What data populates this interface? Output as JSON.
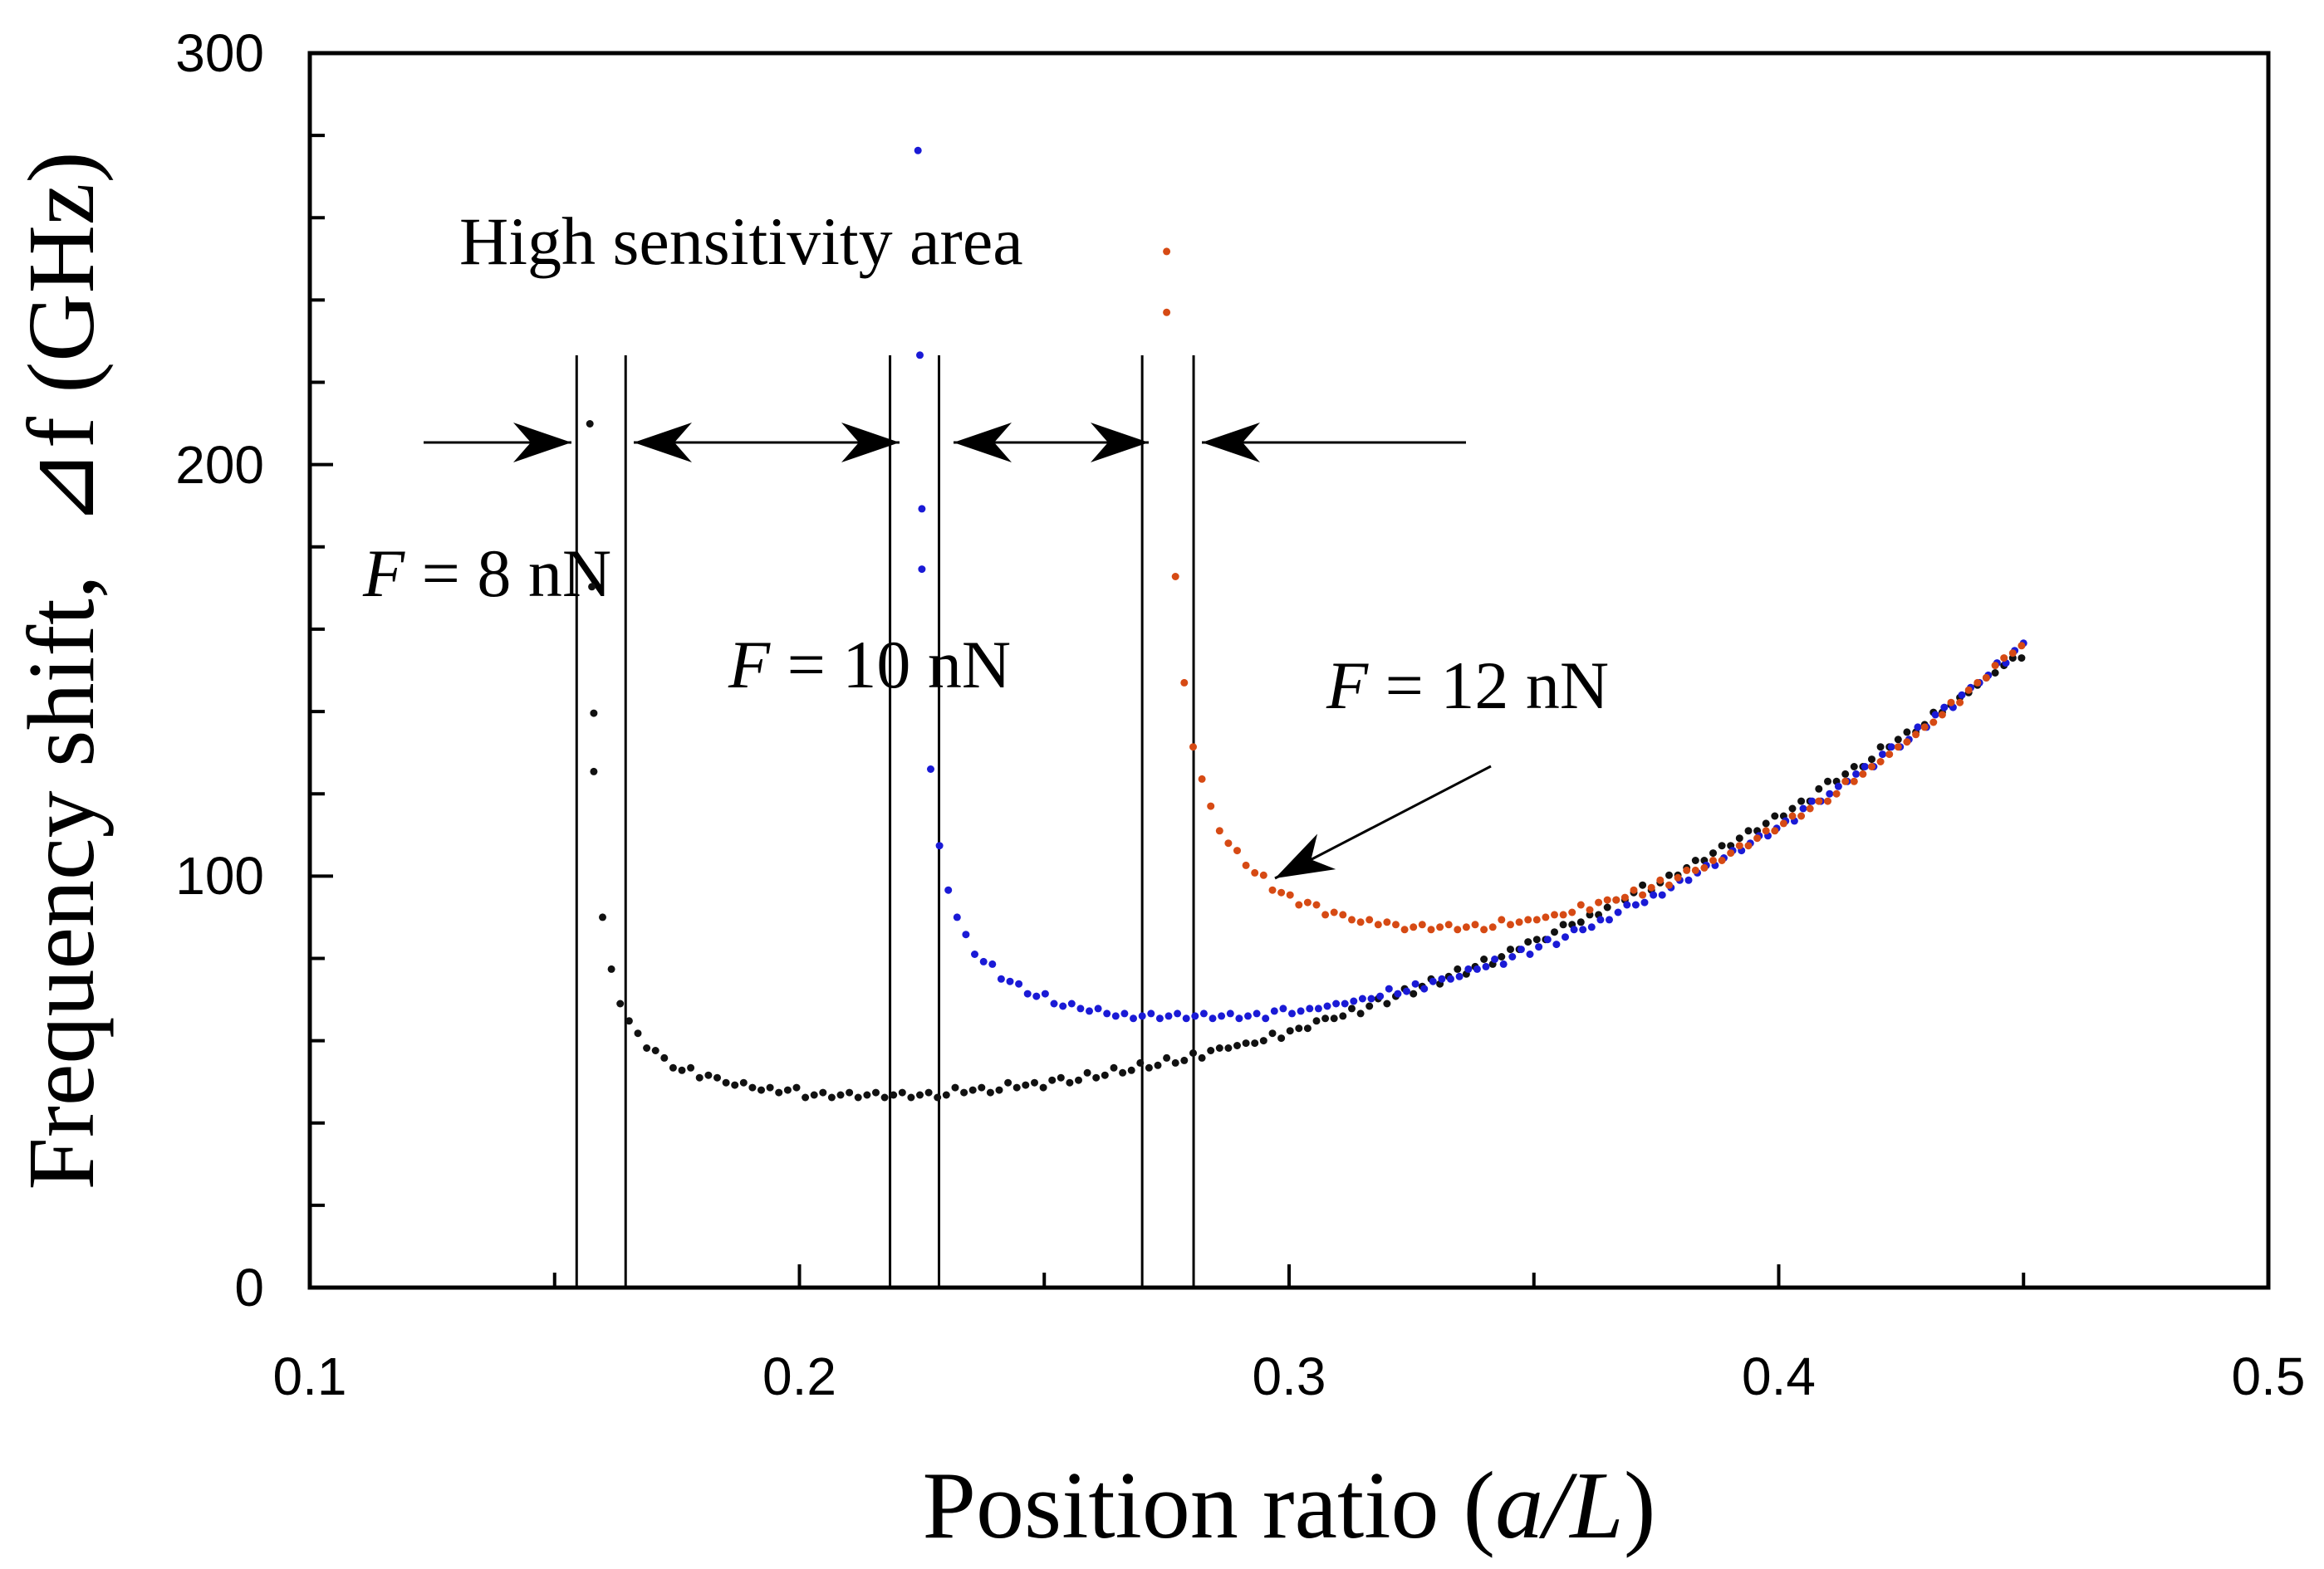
{
  "chart_data": {
    "type": "scatter",
    "title": "",
    "xlabel": "Position ratio (a/L)",
    "xlabel_parts": {
      "prefix": "Position ratio (",
      "italic": "a/L",
      "suffix": ")"
    },
    "ylabel": "Frequency shift,  ⊿f (GHz)",
    "xlim": [
      0.1,
      0.5
    ],
    "ylim": [
      0,
      300
    ],
    "x_ticks": [
      "0.1",
      "0.2",
      "0.3",
      "0.4",
      "0.5"
    ],
    "y_ticks": [
      "0",
      "100",
      "200",
      "300"
    ],
    "grid": false,
    "series": [
      {
        "name": "F = 8 nN",
        "color": "#111111",
        "x_start": 0.158,
        "x_end": 0.45,
        "xmin": 0.2,
        "ymin": 45.5,
        "y_end": 156
      },
      {
        "name": "F = 10 nN",
        "color": "#1a1ad6",
        "x_start": 0.225,
        "x_end": 0.45,
        "xmin": 0.265,
        "ymin": 63.5,
        "y_end": 158
      },
      {
        "name": "F = 12 nN",
        "color": "#d64a14",
        "x_start": 0.275,
        "x_end": 0.45,
        "xmin": 0.32,
        "ymin": 85,
        "y_end": 159
      }
    ],
    "high_sensitivity_bounds": [
      0.1545,
      0.1645,
      0.2185,
      0.2285,
      0.27,
      0.2805
    ],
    "annotations": {
      "high_sensitivity": "High sensitivity area",
      "f8": {
        "italic": "F",
        "rest": " = 8 nN"
      },
      "f10": {
        "italic": "F",
        "rest": " = 10 nN"
      },
      "f12": {
        "italic": "F",
        "rest": " = 12 nN"
      }
    }
  }
}
